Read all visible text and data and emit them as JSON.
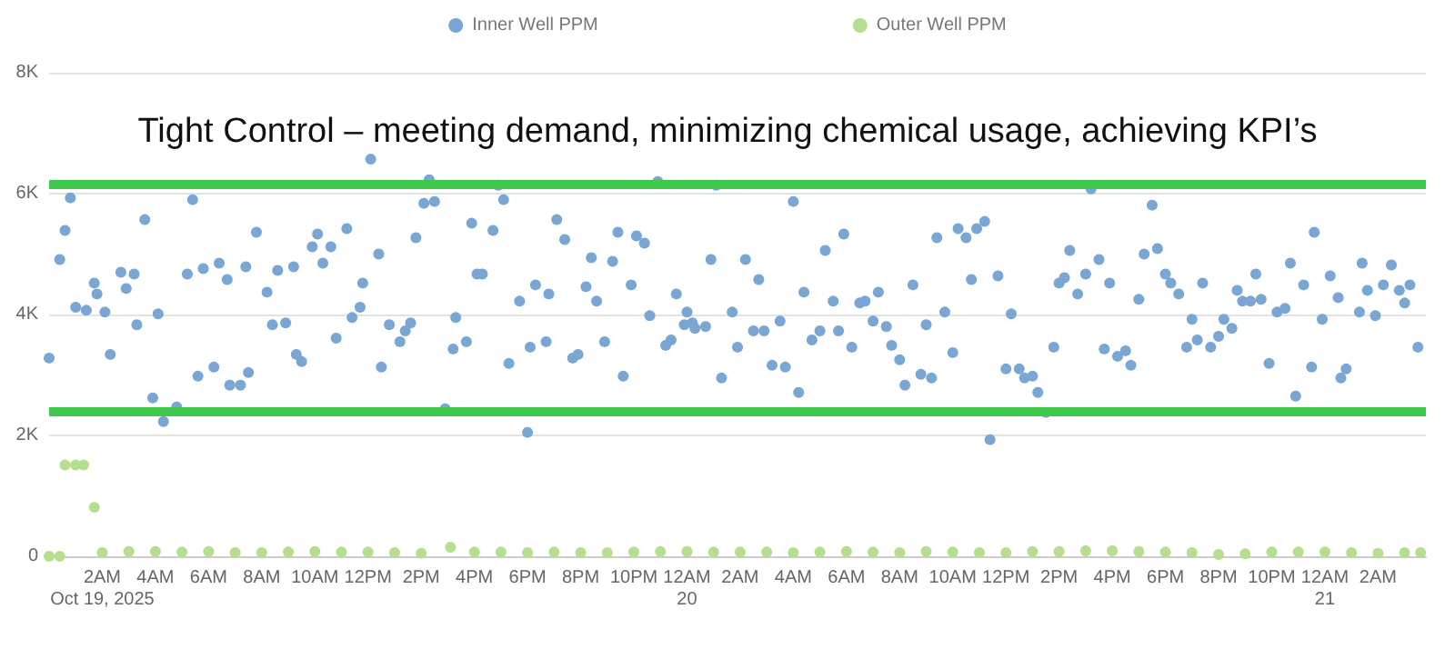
{
  "chart_data": {
    "type": "scatter",
    "title": "Tight Control – meeting demand, minimizing chemical usage, achieving KPI’s",
    "marker": "circle",
    "grid": "y",
    "legend": "top",
    "xlim": [
      "2025-10-19T00:00",
      "2025-10-21T03:48"
    ],
    "ylim": [
      0,
      8000
    ],
    "xticks": [
      {
        "value": "2025-10-19T02:00",
        "label": "2AM\nOct 19, 2025"
      },
      {
        "value": "2025-10-19T04:00",
        "label": "4AM"
      },
      {
        "value": "2025-10-19T06:00",
        "label": "6AM"
      },
      {
        "value": "2025-10-19T08:00",
        "label": "8AM"
      },
      {
        "value": "2025-10-19T10:00",
        "label": "10AM"
      },
      {
        "value": "2025-10-19T12:00",
        "label": "12PM"
      },
      {
        "value": "2025-10-19T14:00",
        "label": "2PM"
      },
      {
        "value": "2025-10-19T16:00",
        "label": "4PM"
      },
      {
        "value": "2025-10-19T18:00",
        "label": "6PM"
      },
      {
        "value": "2025-10-19T20:00",
        "label": "8PM"
      },
      {
        "value": "2025-10-19T22:00",
        "label": "10PM"
      },
      {
        "value": "2025-10-20T00:00",
        "label": "12AM\n20"
      },
      {
        "value": "2025-10-20T02:00",
        "label": "2AM"
      },
      {
        "value": "2025-10-20T04:00",
        "label": "4AM"
      },
      {
        "value": "2025-10-20T06:00",
        "label": "6AM"
      },
      {
        "value": "2025-10-20T08:00",
        "label": "8AM"
      },
      {
        "value": "2025-10-20T10:00",
        "label": "10AM"
      },
      {
        "value": "2025-10-20T12:00",
        "label": "12PM"
      },
      {
        "value": "2025-10-20T14:00",
        "label": "2PM"
      },
      {
        "value": "2025-10-20T16:00",
        "label": "4PM"
      },
      {
        "value": "2025-10-20T18:00",
        "label": "6PM"
      },
      {
        "value": "2025-10-20T20:00",
        "label": "8PM"
      },
      {
        "value": "2025-10-20T22:00",
        "label": "10PM"
      },
      {
        "value": "2025-10-21T00:00",
        "label": "12AM\n21"
      },
      {
        "value": "2025-10-21T02:00",
        "label": "2AM"
      }
    ],
    "yticks": [
      0,
      {
        "value": 2000,
        "label": "2K"
      },
      {
        "value": 4000,
        "label": "4K"
      },
      {
        "value": 6000,
        "label": "6K"
      },
      {
        "value": 8000,
        "label": "8K"
      }
    ],
    "ref_lines": [
      {
        "axis": "y",
        "value": 6170,
        "color": "#3ec84a"
      },
      {
        "axis": "y",
        "value": 2410,
        "color": "#3ec84a"
      }
    ],
    "series": [
      {
        "name": "Inner Well PPM",
        "color": "#7aa6d3",
        "x": [
          "2025-10-19T00:00",
          "2025-10-19T00:24",
          "2025-10-19T00:36",
          "2025-10-19T00:48",
          "2025-10-19T01:00",
          "2025-10-19T01:24",
          "2025-10-19T01:42",
          "2025-10-19T01:48",
          "2025-10-19T02:06",
          "2025-10-19T02:18",
          "2025-10-19T02:42",
          "2025-10-19T02:54",
          "2025-10-19T03:12",
          "2025-10-19T03:18",
          "2025-10-19T03:36",
          "2025-10-19T03:54",
          "2025-10-19T04:06",
          "2025-10-19T04:18",
          "2025-10-19T04:48",
          "2025-10-19T05:12",
          "2025-10-19T05:24",
          "2025-10-19T05:36",
          "2025-10-19T05:48",
          "2025-10-19T06:12",
          "2025-10-19T06:24",
          "2025-10-19T06:42",
          "2025-10-19T06:48",
          "2025-10-19T07:12",
          "2025-10-19T07:24",
          "2025-10-19T07:30",
          "2025-10-19T07:48",
          "2025-10-19T08:12",
          "2025-10-19T08:24",
          "2025-10-19T08:36",
          "2025-10-19T08:54",
          "2025-10-19T09:12",
          "2025-10-19T09:18",
          "2025-10-19T09:30",
          "2025-10-19T09:54",
          "2025-10-19T10:06",
          "2025-10-19T10:18",
          "2025-10-19T10:36",
          "2025-10-19T10:48",
          "2025-10-19T11:12",
          "2025-10-19T11:24",
          "2025-10-19T11:42",
          "2025-10-19T11:48",
          "2025-10-19T12:06",
          "2025-10-19T12:24",
          "2025-10-19T12:30",
          "2025-10-19T12:48",
          "2025-10-19T13:12",
          "2025-10-19T13:24",
          "2025-10-19T13:36",
          "2025-10-19T13:48",
          "2025-10-19T14:06",
          "2025-10-19T14:18",
          "2025-10-19T14:30",
          "2025-10-19T14:54",
          "2025-10-19T15:12",
          "2025-10-19T15:18",
          "2025-10-19T15:42",
          "2025-10-19T15:54",
          "2025-10-19T16:06",
          "2025-10-19T16:18",
          "2025-10-19T16:42",
          "2025-10-19T16:54",
          "2025-10-19T17:06",
          "2025-10-19T17:18",
          "2025-10-19T17:42",
          "2025-10-19T18:00",
          "2025-10-19T18:06",
          "2025-10-19T18:18",
          "2025-10-19T18:42",
          "2025-10-19T18:48",
          "2025-10-19T19:06",
          "2025-10-19T19:24",
          "2025-10-19T19:42",
          "2025-10-19T19:54",
          "2025-10-19T20:12",
          "2025-10-19T20:24",
          "2025-10-19T20:36",
          "2025-10-19T20:54",
          "2025-10-19T21:12",
          "2025-10-19T21:24",
          "2025-10-19T21:36",
          "2025-10-19T21:54",
          "2025-10-19T22:06",
          "2025-10-19T22:24",
          "2025-10-19T22:36",
          "2025-10-19T22:54",
          "2025-10-19T23:12",
          "2025-10-19T23:24",
          "2025-10-19T23:36",
          "2025-10-19T23:54",
          "2025-10-20T00:00",
          "2025-10-20T00:12",
          "2025-10-20T00:18",
          "2025-10-20T00:42",
          "2025-10-20T00:54",
          "2025-10-20T01:06",
          "2025-10-20T01:18",
          "2025-10-20T01:42",
          "2025-10-20T01:54",
          "2025-10-20T02:12",
          "2025-10-20T02:30",
          "2025-10-20T02:42",
          "2025-10-20T02:54",
          "2025-10-20T03:12",
          "2025-10-20T03:30",
          "2025-10-20T03:42",
          "2025-10-20T04:00",
          "2025-10-20T04:12",
          "2025-10-20T04:24",
          "2025-10-20T04:42",
          "2025-10-20T05:00",
          "2025-10-20T05:12",
          "2025-10-20T05:30",
          "2025-10-20T05:42",
          "2025-10-20T05:54",
          "2025-10-20T06:12",
          "2025-10-20T06:30",
          "2025-10-20T06:42",
          "2025-10-20T07:00",
          "2025-10-20T07:12",
          "2025-10-20T07:30",
          "2025-10-20T07:42",
          "2025-10-20T08:00",
          "2025-10-20T08:12",
          "2025-10-20T08:30",
          "2025-10-20T08:48",
          "2025-10-20T09:00",
          "2025-10-20T09:12",
          "2025-10-20T09:24",
          "2025-10-20T09:42",
          "2025-10-20T10:00",
          "2025-10-20T10:12",
          "2025-10-20T10:30",
          "2025-10-20T10:42",
          "2025-10-20T10:54",
          "2025-10-20T11:12",
          "2025-10-20T11:24",
          "2025-10-20T11:42",
          "2025-10-20T12:00",
          "2025-10-20T12:12",
          "2025-10-20T12:30",
          "2025-10-20T12:42",
          "2025-10-20T13:00",
          "2025-10-20T13:12",
          "2025-10-20T13:30",
          "2025-10-20T13:48",
          "2025-10-20T14:00",
          "2025-10-20T14:12",
          "2025-10-20T14:24",
          "2025-10-20T14:42",
          "2025-10-20T15:00",
          "2025-10-20T15:12",
          "2025-10-20T15:30",
          "2025-10-20T15:42",
          "2025-10-20T15:54",
          "2025-10-20T16:12",
          "2025-10-20T16:30",
          "2025-10-20T16:42",
          "2025-10-20T17:00",
          "2025-10-20T17:12",
          "2025-10-20T17:30",
          "2025-10-20T17:42",
          "2025-10-20T18:00",
          "2025-10-20T18:12",
          "2025-10-20T18:30",
          "2025-10-20T18:48",
          "2025-10-20T19:00",
          "2025-10-20T19:12",
          "2025-10-20T19:24",
          "2025-10-20T19:42",
          "2025-10-20T20:00",
          "2025-10-20T20:12",
          "2025-10-20T20:30",
          "2025-10-20T20:42",
          "2025-10-20T20:54",
          "2025-10-20T21:12",
          "2025-10-20T21:24",
          "2025-10-20T21:36",
          "2025-10-20T21:54",
          "2025-10-20T22:12",
          "2025-10-20T22:30",
          "2025-10-20T22:42",
          "2025-10-20T22:54",
          "2025-10-20T23:12",
          "2025-10-20T23:30",
          "2025-10-20T23:36",
          "2025-10-20T23:54",
          "2025-10-21T00:12",
          "2025-10-21T00:30",
          "2025-10-21T00:36",
          "2025-10-21T00:48",
          "2025-10-21T01:18",
          "2025-10-21T01:24",
          "2025-10-21T01:36",
          "2025-10-21T01:54",
          "2025-10-21T02:12",
          "2025-10-21T02:30",
          "2025-10-21T02:48",
          "2025-10-21T03:00",
          "2025-10-21T03:12",
          "2025-10-21T03:30"
        ],
        "values": [
          3280,
          4910,
          5390,
          5930,
          4120,
          4070,
          4520,
          4340,
          4040,
          3340,
          4700,
          4430,
          4670,
          3830,
          5570,
          2620,
          4010,
          2230,
          2470,
          4670,
          5900,
          2980,
          4760,
          3130,
          4850,
          4580,
          2830,
          2830,
          4790,
          3040,
          5360,
          4370,
          3830,
          4730,
          3860,
          4790,
          3340,
          3220,
          5120,
          5330,
          4850,
          5120,
          3610,
          5420,
          3950,
          4120,
          4520,
          6570,
          5000,
          3130,
          3830,
          3550,
          3730,
          3860,
          5270,
          5840,
          6230,
          5870,
          2440,
          3430,
          3950,
          3550,
          5510,
          4670,
          4670,
          5390,
          6140,
          5900,
          3190,
          4220,
          2050,
          3460,
          4490,
          3550,
          4340,
          5570,
          5240,
          3280,
          3340,
          4460,
          4940,
          4220,
          3550,
          4880,
          5360,
          2980,
          4490,
          5300,
          5180,
          3980,
          6200,
          3490,
          3580,
          4340,
          3830,
          4040,
          3860,
          3770,
          3800,
          4910,
          6140,
          2950,
          4040,
          3460,
          4910,
          3730,
          4580,
          3730,
          3160,
          3890,
          3130,
          5870,
          2710,
          4370,
          3580,
          3730,
          5060,
          4220,
          3730,
          5330,
          3460,
          4190,
          4220,
          3890,
          4370,
          3800,
          3490,
          3250,
          2830,
          4490,
          3010,
          3830,
          2950,
          5270,
          4040,
          3370,
          5420,
          5270,
          4580,
          5420,
          5540,
          1930,
          4640,
          3100,
          4010,
          3100,
          2950,
          2980,
          2710,
          2380,
          3460,
          4520,
          4610,
          5060,
          4340,
          4670,
          6080,
          4910,
          3430,
          4520,
          3310,
          3400,
          3160,
          4250,
          5000,
          5810,
          5090,
          4670,
          4520,
          4340,
          3460,
          3920,
          3580,
          4520,
          3460,
          3640,
          3920,
          3770,
          4400,
          4220,
          4220,
          4670,
          4250,
          3190,
          4040,
          4100,
          4850,
          2650,
          4490,
          3130,
          5360,
          3920,
          4640,
          4280,
          2950,
          3100,
          4040,
          4850,
          4400,
          3980,
          4490,
          4820,
          4400,
          4190,
          4490,
          3460
        ]
      },
      {
        "name": "Outer Well PPM",
        "color": "#b5df8f",
        "x": [
          "2025-10-19T00:00",
          "2025-10-19T00:24",
          "2025-10-19T00:36",
          "2025-10-19T01:00",
          "2025-10-19T01:18",
          "2025-10-19T01:42",
          "2025-10-19T02:00",
          "2025-10-19T03:00",
          "2025-10-19T04:00",
          "2025-10-19T05:00",
          "2025-10-19T06:00",
          "2025-10-19T07:00",
          "2025-10-19T08:00",
          "2025-10-19T09:00",
          "2025-10-19T10:00",
          "2025-10-19T11:00",
          "2025-10-19T12:00",
          "2025-10-19T13:00",
          "2025-10-19T14:00",
          "2025-10-19T15:06",
          "2025-10-19T16:00",
          "2025-10-19T17:00",
          "2025-10-19T18:00",
          "2025-10-19T19:00",
          "2025-10-19T20:00",
          "2025-10-19T21:00",
          "2025-10-19T22:00",
          "2025-10-19T23:00",
          "2025-10-20T00:00",
          "2025-10-20T01:00",
          "2025-10-20T02:00",
          "2025-10-20T03:00",
          "2025-10-20T04:00",
          "2025-10-20T05:00",
          "2025-10-20T06:00",
          "2025-10-20T07:00",
          "2025-10-20T08:00",
          "2025-10-20T09:00",
          "2025-10-20T10:00",
          "2025-10-20T11:00",
          "2025-10-20T12:00",
          "2025-10-20T13:00",
          "2025-10-20T14:00",
          "2025-10-20T15:00",
          "2025-10-20T16:00",
          "2025-10-20T17:00",
          "2025-10-20T18:00",
          "2025-10-20T19:00",
          "2025-10-20T20:00",
          "2025-10-20T21:00",
          "2025-10-20T22:00",
          "2025-10-20T23:00",
          "2025-10-21T00:00",
          "2025-10-21T01:00",
          "2025-10-21T02:00",
          "2025-10-21T03:00",
          "2025-10-21T03:36"
        ],
        "values": [
          0,
          0,
          1510,
          1510,
          1510,
          810,
          60,
          80,
          80,
          70,
          80,
          60,
          60,
          70,
          80,
          70,
          70,
          60,
          50,
          150,
          70,
          70,
          60,
          70,
          60,
          60,
          70,
          80,
          80,
          70,
          70,
          70,
          60,
          70,
          80,
          70,
          60,
          80,
          70,
          60,
          60,
          80,
          80,
          90,
          90,
          80,
          70,
          60,
          30,
          40,
          70,
          70,
          70,
          60,
          50,
          60,
          60
        ]
      }
    ]
  }
}
